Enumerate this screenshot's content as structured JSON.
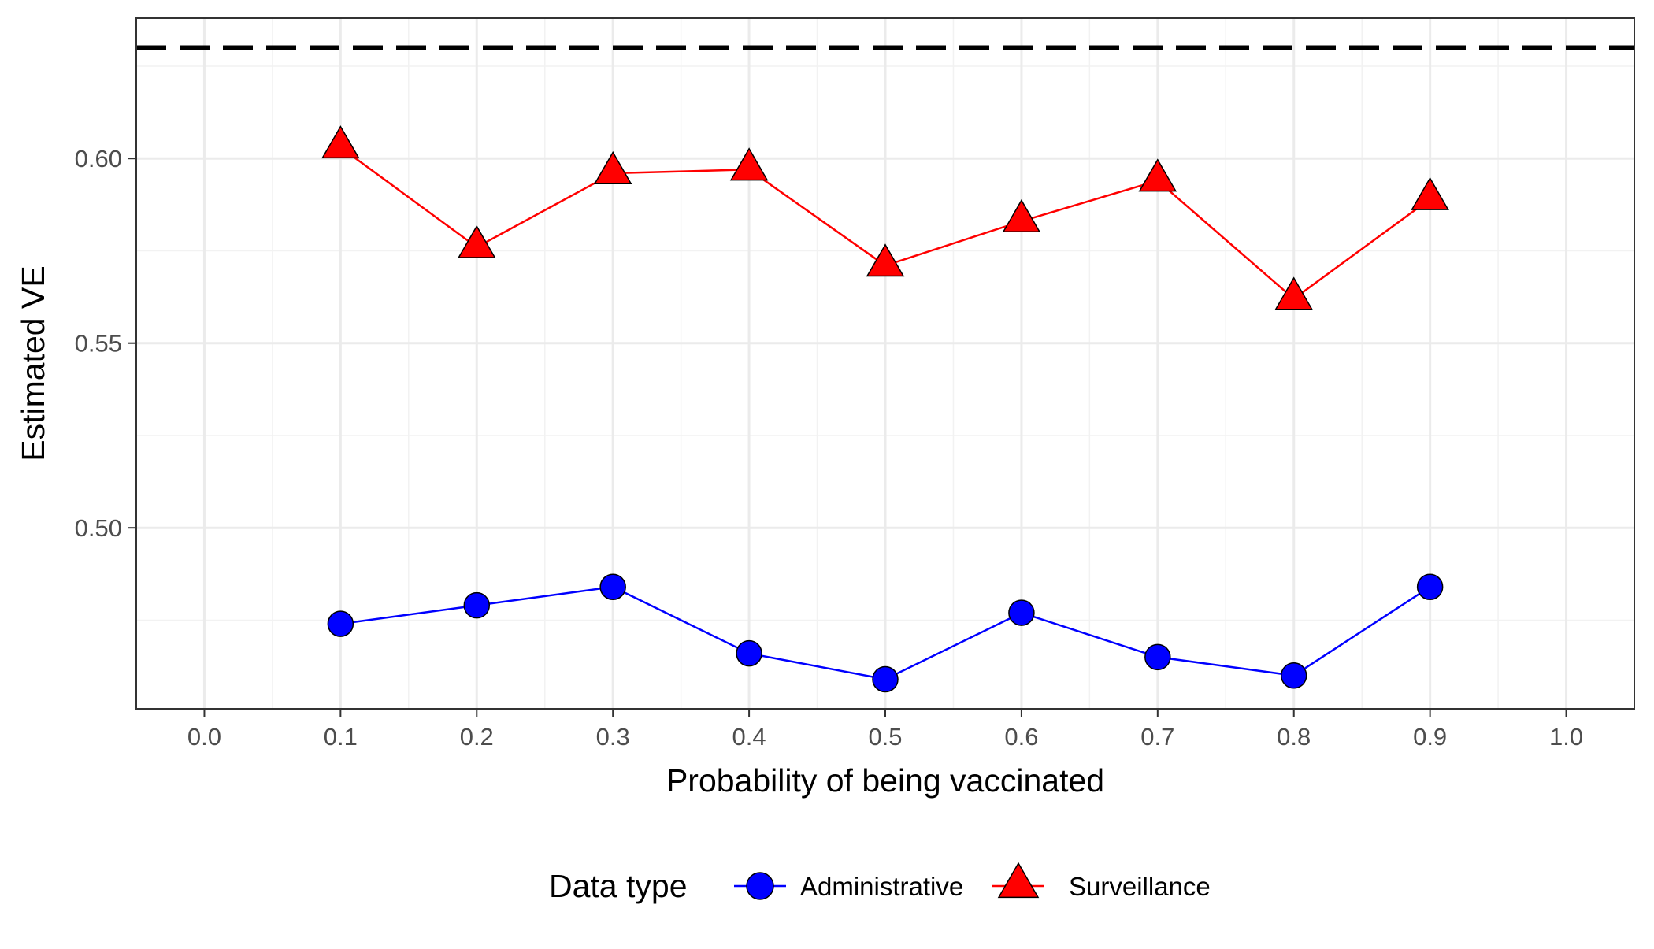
{
  "chart_data": {
    "type": "line",
    "xlabel": "Probability of being vaccinated",
    "ylabel": "Estimated VE",
    "xlim": [
      -0.05,
      1.05
    ],
    "ylim": [
      0.451,
      0.638
    ],
    "x_ticks": [
      "0.0",
      "0.1",
      "0.2",
      "0.3",
      "0.4",
      "0.5",
      "0.6",
      "0.7",
      "0.8",
      "0.9",
      "1.0"
    ],
    "y_ticks": [
      "0.50",
      "0.55",
      "0.60"
    ],
    "grid": true,
    "reference_line": {
      "y": 0.63,
      "style": "dashed",
      "color": "#000000"
    },
    "legend": {
      "title": "Data type",
      "placement": "bottom"
    },
    "series": [
      {
        "name": "Administrative",
        "marker": "circle",
        "color": "#0000ff",
        "x": [
          0.1,
          0.2,
          0.3,
          0.4,
          0.5,
          0.6,
          0.7,
          0.8,
          0.9
        ],
        "values": [
          0.474,
          0.479,
          0.484,
          0.466,
          0.459,
          0.477,
          0.465,
          0.46,
          0.484
        ]
      },
      {
        "name": "Surveillance",
        "marker": "triangle",
        "color": "#ff0000",
        "x": [
          0.1,
          0.2,
          0.3,
          0.4,
          0.5,
          0.6,
          0.7,
          0.8,
          0.9
        ],
        "values": [
          0.603,
          0.576,
          0.596,
          0.597,
          0.571,
          0.583,
          0.594,
          0.562,
          0.589
        ]
      }
    ]
  }
}
